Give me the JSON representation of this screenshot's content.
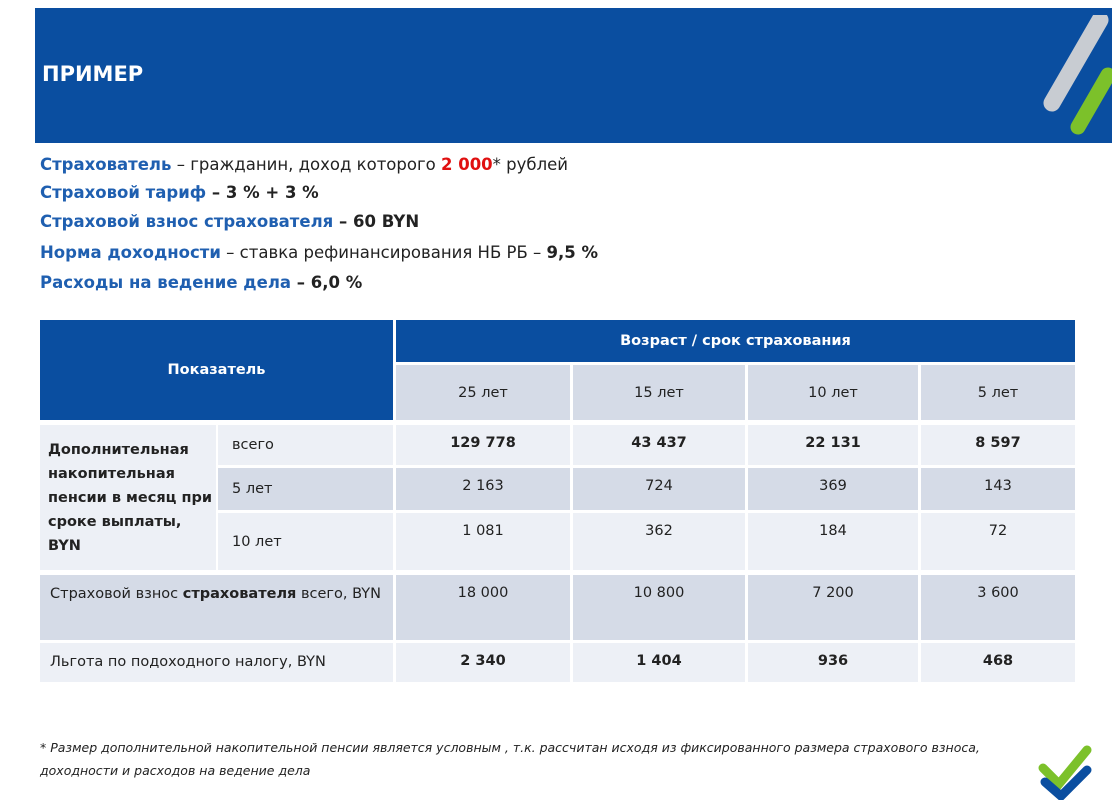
{
  "header": {
    "title": "ПРИМЕР"
  },
  "info": [
    {
      "label": "Страхователь",
      "text": " – гражданин, доход которого ",
      "highlight": "2 000",
      "mark": "*",
      "suffix": " рублей"
    },
    {
      "label": "Страховой тариф",
      "text": " – ",
      "value": "3 % + 3 %"
    },
    {
      "label": "Страховой взнос страхователя",
      "text": " – ",
      "value": "60 BYN"
    },
    {
      "label": "Норма доходности",
      "text": " – ставка рефинансирования НБ РБ – ",
      "value": "9,5 %"
    },
    {
      "label": "Расходы на ведение дела",
      "text": " – ",
      "value": "6,0 %"
    }
  ],
  "table": {
    "indicator_header": "Показатель",
    "group_header": "Возраст / срок страхования",
    "columns": [
      "25 лет",
      "15 лет",
      "10 лет",
      "5 лет"
    ],
    "pension": {
      "label": "Дополнительная накопительная пенсии в месяц при сроке выплаты, BYN",
      "rows": [
        {
          "label": "всего",
          "values": [
            "129 778",
            "43 437",
            "22 131",
            "8 597"
          ]
        },
        {
          "label": "5 лет",
          "values": [
            "2 163",
            "724",
            "369",
            "143"
          ]
        },
        {
          "label": "10 лет",
          "values": [
            "1 081",
            "362",
            "184",
            "72"
          ]
        }
      ]
    },
    "rows": [
      {
        "label": "Страховой взнос ",
        "label_bold": "страхователя",
        "label_suffix": " всего, BYN",
        "values": [
          "18 000",
          "10 800",
          "7 200",
          "3 600"
        ]
      },
      {
        "label": "Льгота по подоходного налогу, BYN",
        "values": [
          "2 340",
          "1 404",
          "936",
          "468"
        ]
      }
    ]
  },
  "footnote": "* Размер дополнительной накопительной пенсии является условным , т.к. рассчитан исходя из фиксированного размера страхового взноса, доходности и расходов на ведение дела"
}
